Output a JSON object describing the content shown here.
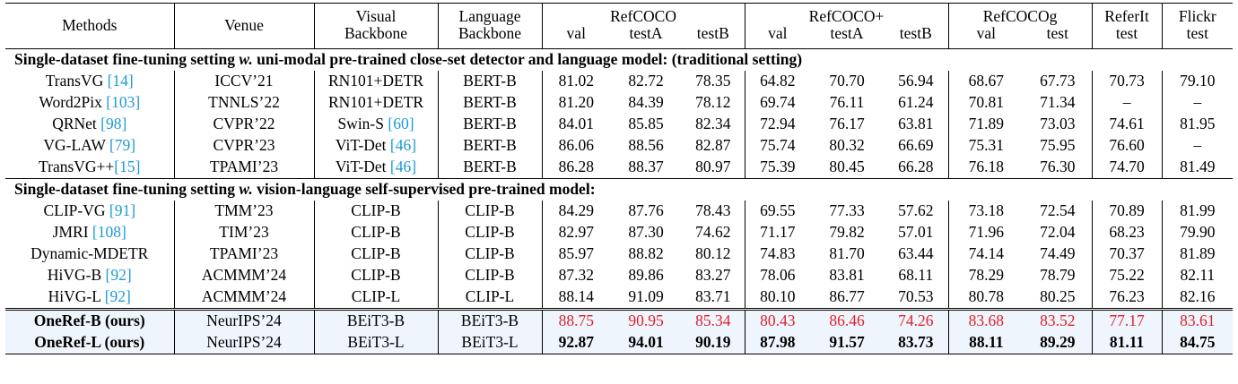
{
  "header": {
    "methods": "Methods",
    "venue": "Venue",
    "visual": [
      "Visual",
      "Backbone"
    ],
    "language": [
      "Language",
      "Backbone"
    ],
    "groups": [
      {
        "name": "RefCOCO",
        "subs": [
          "val",
          "testA",
          "testB"
        ]
      },
      {
        "name": "RefCOCO+",
        "subs": [
          "val",
          "testA",
          "testB"
        ]
      },
      {
        "name": "RefCOCOg",
        "subs": [
          "val",
          "test"
        ]
      },
      {
        "name": "ReferIt",
        "subs": [
          "test"
        ]
      },
      {
        "name": "Flickr",
        "subs": [
          "test"
        ]
      }
    ]
  },
  "sections": [
    {
      "title_pre": "Single-dataset fine-tuning setting ",
      "title_em": "w.",
      "title_post": " uni-modal pre-trained close-set detector and language model: (traditional setting)",
      "rows": [
        {
          "method": "TransVG ",
          "cite": "[14]",
          "venue": "ICCV’21",
          "visual": "RN101+DETR",
          "vcite": "",
          "language": "BERT-B",
          "values": [
            "81.02",
            "82.72",
            "78.35",
            "64.82",
            "70.70",
            "56.94",
            "68.67",
            "67.73",
            "70.73",
            "79.10"
          ]
        },
        {
          "method": "Word2Pix ",
          "cite": "[103]",
          "venue": "TNNLS’22",
          "visual": "RN101+DETR",
          "vcite": "",
          "language": "BERT-B",
          "values": [
            "81.20",
            "84.39",
            "78.12",
            "69.74",
            "76.11",
            "61.24",
            "70.81",
            "71.34",
            "–",
            "–"
          ]
        },
        {
          "method": "QRNet ",
          "cite": "[98]",
          "venue": "CVPR’22",
          "visual": "Swin-S ",
          "vcite": "[60]",
          "language": "BERT-B",
          "values": [
            "84.01",
            "85.85",
            "82.34",
            "72.94",
            "76.17",
            "63.81",
            "71.89",
            "73.03",
            "74.61",
            "81.95"
          ]
        },
        {
          "method": "VG-LAW ",
          "cite": "[79]",
          "venue": "CVPR’23",
          "visual": "ViT-Det ",
          "vcite": "[46]",
          "language": "BERT-B",
          "values": [
            "86.06",
            "88.56",
            "82.87",
            "75.74",
            "80.32",
            "66.69",
            "75.31",
            "75.95",
            "76.60",
            "–"
          ]
        },
        {
          "method": "TransVG++",
          "cite": "[15]",
          "venue": "TPAMI’23",
          "visual": "ViT-Det ",
          "vcite": "[46]",
          "language": "BERT-B",
          "values": [
            "86.28",
            "88.37",
            "80.97",
            "75.39",
            "80.45",
            "66.28",
            "76.18",
            "76.30",
            "74.70",
            "81.49"
          ]
        }
      ]
    },
    {
      "title_pre": "Single-dataset fine-tuning setting ",
      "title_em": "w.",
      "title_post": " vision-language self-supervised pre-trained model:",
      "rows": [
        {
          "method": "CLIP-VG ",
          "cite": "[91]",
          "venue": "TMM’23",
          "visual": "CLIP-B",
          "vcite": "",
          "language": "CLIP-B",
          "values": [
            "84.29",
            "87.76",
            "78.43",
            "69.55",
            "77.33",
            "57.62",
            "73.18",
            "72.54",
            "70.89",
            "81.99"
          ]
        },
        {
          "method": "JMRI ",
          "cite": "[108]",
          "venue": "TIM’23",
          "visual": "CLIP-B",
          "vcite": "",
          "language": "CLIP-B",
          "values": [
            "82.97",
            "87.30",
            "74.62",
            "71.17",
            "79.82",
            "57.01",
            "71.96",
            "72.04",
            "68.23",
            "79.90"
          ]
        },
        {
          "method": "Dynamic-MDETR",
          "cite": "",
          "venue": "TPAMI’23",
          "visual": "CLIP-B",
          "vcite": "",
          "language": "CLIP-B",
          "values": [
            "85.97",
            "88.82",
            "80.12",
            "74.83",
            "81.70",
            "63.44",
            "74.14",
            "74.49",
            "70.37",
            "81.89"
          ]
        },
        {
          "method": "HiVG-B ",
          "cite": "[92]",
          "venue": "ACMMM’24",
          "visual": "CLIP-B",
          "vcite": "",
          "language": "CLIP-B",
          "values": [
            "87.32",
            "89.86",
            "83.27",
            "78.06",
            "83.81",
            "68.11",
            "78.29",
            "78.79",
            "75.22",
            "82.11"
          ]
        },
        {
          "method": "HiVG-L ",
          "cite": "[92]",
          "venue": "ACMMM’24",
          "visual": "CLIP-L",
          "vcite": "",
          "language": "CLIP-L",
          "values": [
            "88.14",
            "91.09",
            "83.71",
            "80.10",
            "86.77",
            "70.53",
            "80.78",
            "80.25",
            "76.23",
            "82.16"
          ]
        }
      ]
    }
  ],
  "ours": [
    {
      "method": "OneRef-B (ours)",
      "venue": "NeurIPS’24",
      "visual": "BEiT3-B",
      "language": "BEiT3-B",
      "values": [
        "88.75",
        "90.95",
        "85.34",
        "80.43",
        "86.46",
        "74.26",
        "83.68",
        "83.52",
        "77.17",
        "83.61"
      ],
      "style": "red"
    },
    {
      "method": "OneRef-L (ours)",
      "venue": "NeurIPS’24",
      "visual": "BEiT3-L",
      "language": "BEiT3-L",
      "values": [
        "92.87",
        "94.01",
        "90.19",
        "87.98",
        "91.57",
        "83.73",
        "88.11",
        "89.29",
        "81.11",
        "84.75"
      ],
      "style": "bold"
    }
  ],
  "colors": {
    "citation": "#1a9ad6",
    "highlight_red": "#e0202a",
    "ours_background": "#eef5fc"
  }
}
